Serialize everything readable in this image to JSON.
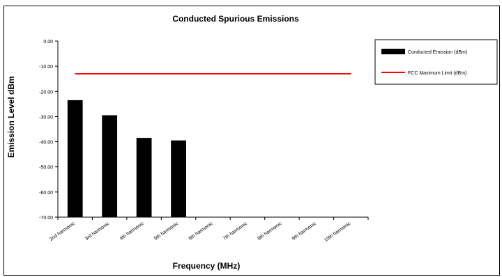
{
  "chart_data": {
    "type": "bar",
    "title": "Conducted Spurious Emissions",
    "xlabel": "Frequency (MHz)",
    "ylabel": "Emission Level dBm",
    "categories": [
      "2nd harmonic",
      "3rd harmonic",
      "4th harmonic",
      "5th harmonic",
      "6th harmonic",
      "7th harmonic",
      "8th harmonic",
      "9th harmonic",
      "10th harmonic"
    ],
    "series": [
      {
        "name": "Conducted Emission (dBm)",
        "type": "bar",
        "color": "#000000",
        "values": [
          -23.5,
          -29.5,
          -38.5,
          -39.5,
          null,
          null,
          null,
          null,
          null
        ]
      },
      {
        "name": "FCC Maximum Limit (dBm)",
        "type": "line",
        "color": "#ff0000",
        "values": [
          -13,
          -13,
          -13,
          -13,
          -13,
          -13,
          -13,
          -13,
          -13
        ]
      }
    ],
    "ylim": [
      -70,
      0
    ],
    "yticks": [
      "0.00",
      "-10.00",
      "-20.00",
      "-30.00",
      "-40.00",
      "-50.00",
      "-60.00",
      "-70.00"
    ],
    "grid": false,
    "legend": "right"
  }
}
